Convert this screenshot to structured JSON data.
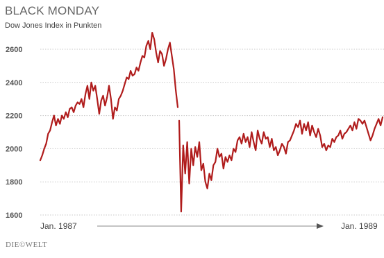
{
  "chart_data": {
    "type": "line",
    "title": "BLACK MONDAY",
    "subtitle": "Dow Jones Index in Punkten",
    "source": "DIE©WELT",
    "xlabel": "",
    "ylabel": "",
    "x_tick_labels": [
      "Jan. 1987",
      "Jan. 1989"
    ],
    "y_ticks": [
      1600,
      1800,
      2000,
      2200,
      2400,
      2600
    ],
    "ylim": [
      1580,
      2700
    ],
    "grid": true,
    "line_color": "#b01c1c",
    "series": [
      {
        "values_pre_crash": [
          1930,
          1960,
          2000,
          2030,
          2090,
          2110,
          2160,
          2200,
          2140,
          2180,
          2150,
          2200,
          2180,
          2220,
          2190,
          2240,
          2250,
          2220,
          2260,
          2280,
          2270,
          2300,
          2250,
          2330,
          2380,
          2300,
          2400,
          2350,
          2380,
          2300,
          2210,
          2290,
          2320,
          2260,
          2310,
          2380,
          2300,
          2180,
          2250,
          2230,
          2300,
          2320,
          2350,
          2390,
          2430,
          2420,
          2470,
          2440,
          2450,
          2490,
          2470,
          2520,
          2560,
          2550,
          2620,
          2650,
          2600,
          2700,
          2660,
          2580,
          2520,
          2590,
          2570,
          2500,
          2540,
          2600,
          2640,
          2560,
          2480,
          2350,
          2250
        ],
        "values_post_crash": [
          2170,
          1620,
          2020,
          1850,
          2040,
          1790,
          2000,
          1900,
          2010,
          1950,
          2040,
          1870,
          1910,
          1800,
          1760,
          1850,
          1810,
          1900,
          1920,
          2000,
          1950,
          1970,
          1880,
          1950,
          1920,
          1960,
          1930,
          2000,
          1980,
          2050,
          2070,
          2030,
          2090,
          2040,
          2070,
          2010,
          2100,
          2040,
          1990,
          2110,
          2060,
          2030,
          2100,
          2060,
          2070,
          2010,
          2060,
          1990,
          2010,
          1960,
          1990,
          2030,
          2010,
          1970,
          2040,
          2050,
          2080,
          2110,
          2150,
          2130,
          2170,
          2090,
          2150,
          2110,
          2160,
          2080,
          2140,
          2100,
          2070,
          2120,
          2080,
          2010,
          2030,
          1990,
          2020,
          2010,
          2060,
          2040,
          2070,
          2080,
          2110,
          2060,
          2090,
          2100,
          2120,
          2140,
          2110,
          2160,
          2120,
          2180,
          2170,
          2150,
          2170,
          2130,
          2090,
          2050,
          2080,
          2120,
          2150,
          2180,
          2140,
          2190
        ]
      }
    ]
  }
}
